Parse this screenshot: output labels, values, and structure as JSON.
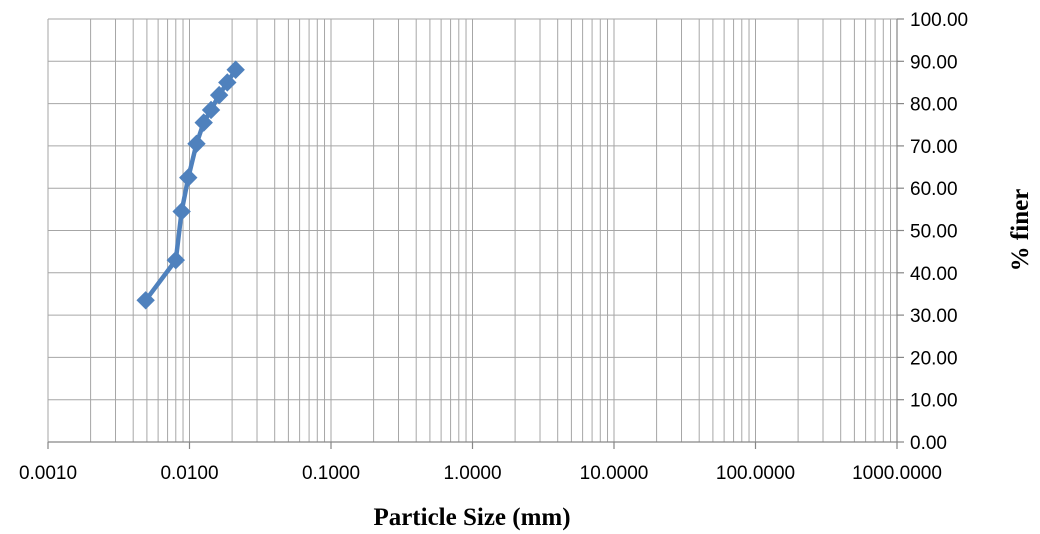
{
  "chart_data": {
    "type": "scatter",
    "title": "",
    "xlabel": "Particle Size (mm)",
    "ylabel": "% finer",
    "x_scale": "log",
    "xlim": [
      0.001,
      1000
    ],
    "ylim": [
      0,
      100
    ],
    "x_tick_labels": [
      "0.0010",
      "0.0100",
      "0.1000",
      "1.0000",
      "10.0000",
      "100.0000",
      "1000.0000"
    ],
    "y_tick_labels": [
      "0.00",
      "10.00",
      "20.00",
      "30.00",
      "40.00",
      "50.00",
      "60.00",
      "70.00",
      "80.00",
      "90.00",
      "100.00"
    ],
    "grid": true,
    "legend": "none",
    "series": [
      {
        "color": "#4f81bd",
        "marker": "diamond",
        "connect_with_lines": true,
        "points": [
          {
            "x": 0.0049,
            "y": 33.5
          },
          {
            "x": 0.008,
            "y": 43.0
          },
          {
            "x": 0.0088,
            "y": 54.5
          },
          {
            "x": 0.0098,
            "y": 62.5
          },
          {
            "x": 0.0112,
            "y": 70.5
          },
          {
            "x": 0.0126,
            "y": 75.5
          },
          {
            "x": 0.0142,
            "y": 78.5
          },
          {
            "x": 0.0162,
            "y": 82.0
          },
          {
            "x": 0.0185,
            "y": 85.0
          },
          {
            "x": 0.0212,
            "y": 88.0
          }
        ]
      }
    ]
  }
}
